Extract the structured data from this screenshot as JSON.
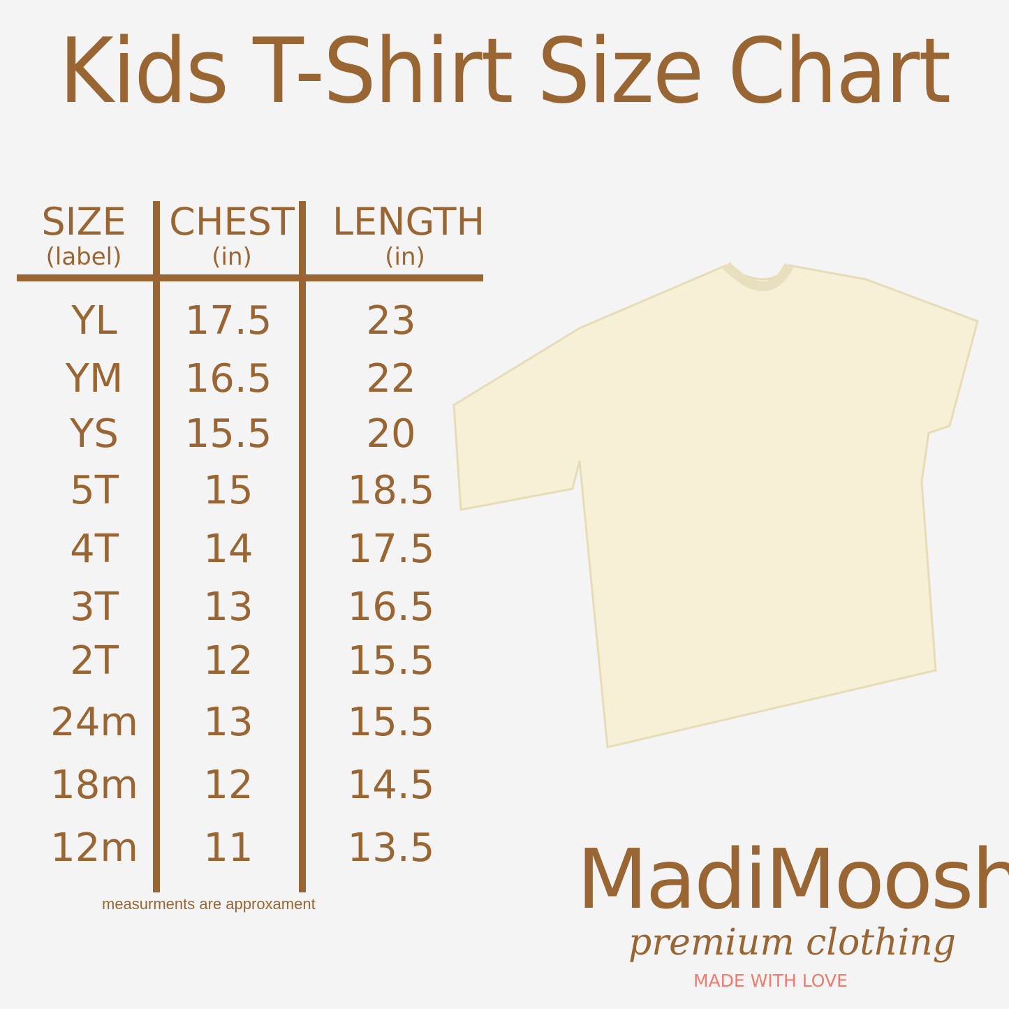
{
  "title": "Kids T-Shirt Size Chart",
  "table": {
    "headers": [
      {
        "label": "SIZE",
        "sub": "(label)"
      },
      {
        "label": "CHEST",
        "sub": "(in)"
      },
      {
        "label": "LENGTH",
        "sub": "(in)"
      }
    ],
    "rows": [
      [
        "YL",
        "17.5",
        "23"
      ],
      [
        "YM",
        "16.5",
        "22"
      ],
      [
        "YS",
        "15.5",
        "20"
      ],
      [
        "5T",
        "15",
        "18.5"
      ],
      [
        "4T",
        "14",
        "17.5"
      ],
      [
        "3T",
        "13",
        "16.5"
      ],
      [
        "2T",
        "12",
        "15.5"
      ],
      [
        "24m",
        "13",
        "15.5"
      ],
      [
        "18m",
        "12",
        "14.5"
      ],
      [
        "12m",
        "11",
        "13.5"
      ]
    ]
  },
  "note": "measurments are approxament",
  "brand": {
    "name": "MadiMoosh",
    "tagline": "premium clothing",
    "slogan": "MADE WITH LOVE"
  },
  "colors": {
    "accent": "#996633",
    "slogan": "#f07a6e",
    "background": "#f4f4f4",
    "shirt": "#f6f0d6"
  }
}
